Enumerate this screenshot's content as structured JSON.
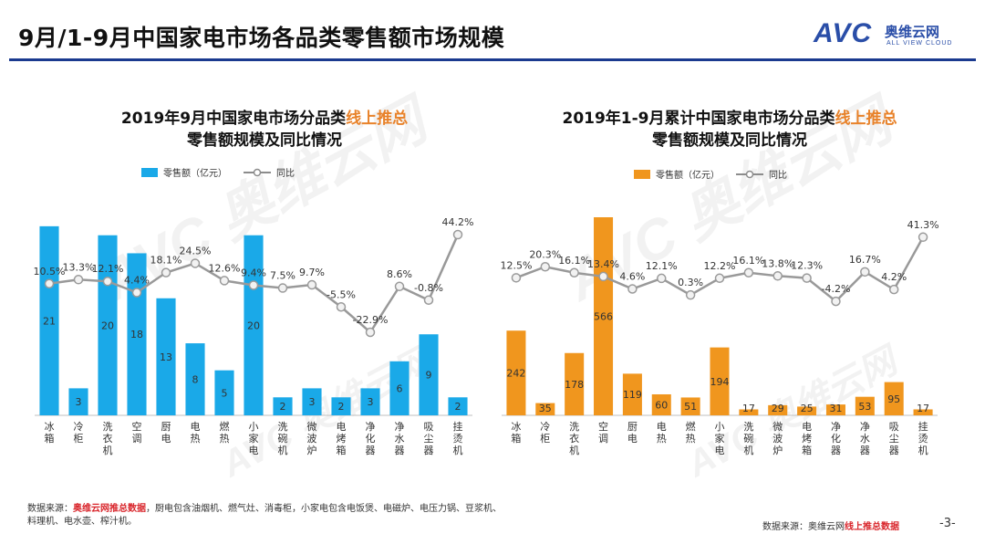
{
  "page": {
    "title": "9月/1-9月中国家电市场各品类零售额市场规模",
    "logo_text": "AVC",
    "logo_cn": "奥维云网",
    "logo_en": "ALL VIEW CLOUD",
    "page_number": "-3-",
    "watermark": "AVC 奥维云网",
    "accent_color": "#1a3a8f"
  },
  "footer": {
    "left_prefix": "数据来源：",
    "left_source": "奥维云网推总数据",
    "left_note": "，厨电包含油烟机、燃气灶、消毒柜，小家电包含电饭煲、电磁炉、电压力锅、豆浆机、料理机、电水壶、榨汁机。",
    "right_prefix": "数据来源：奥维云网",
    "right_source": "线上推总数据"
  },
  "chart_data": [
    {
      "type": "bar",
      "title_line1_prefix": "2019年9月中国家电市场分品类",
      "title_highlight": "线上推总",
      "title_line2": "零售额规模及同比情况",
      "legend_bar": "零售额（亿元）",
      "legend_line": "同比",
      "bar_color": "#1aa9e8",
      "categories": [
        "冰箱",
        "冷柜",
        "洗衣机",
        "空调",
        "厨电",
        "电热",
        "燃热",
        "小家电",
        "洗碗机",
        "微波炉",
        "电烤箱",
        "净化器",
        "净水器",
        "吸尘器",
        "挂烫机"
      ],
      "values": [
        21,
        3,
        20,
        18,
        13,
        8,
        5,
        20,
        2,
        3,
        2,
        3,
        6,
        9,
        2
      ],
      "value_labels": [
        "21",
        "3",
        "20",
        "18",
        "13",
        "8",
        "5",
        "20",
        "2",
        "3",
        "2",
        "3",
        "6",
        "9",
        "2"
      ],
      "yoy": [
        10.5,
        13.3,
        12.1,
        4.4,
        18.1,
        24.5,
        12.6,
        9.4,
        7.5,
        9.7,
        -5.5,
        -22.9,
        8.6,
        -0.8,
        44.2
      ],
      "yoy_labels": [
        "10.5%",
        "13.3%",
        "12.1%",
        "4.4%",
        "18.1%",
        "24.5%",
        "12.6%",
        "9.4%",
        "7.5%",
        "9.7%",
        "-5.5%",
        "-22.9%",
        "8.6%",
        "-0.8%",
        "44.2%"
      ],
      "ylim": [
        0,
        22
      ],
      "yoy_lim": [
        -80,
        80
      ]
    },
    {
      "type": "bar",
      "title_line1_prefix": "2019年1-9月累计中国家电市场分品类",
      "title_highlight": "线上推总",
      "title_line2": "零售额规模及同比情况",
      "legend_bar": "零售额（亿元）",
      "legend_line": "同比",
      "bar_color": "#f0961e",
      "categories": [
        "冰箱",
        "冷柜",
        "洗衣机",
        "空调",
        "厨电",
        "电热",
        "燃热",
        "小家电",
        "洗碗机",
        "微波炉",
        "电烤箱",
        "净化器",
        "净水器",
        "吸尘器",
        "挂烫机"
      ],
      "values": [
        242,
        35,
        178,
        566,
        119,
        60,
        51,
        194,
        17,
        29,
        25,
        31,
        53,
        95,
        17
      ],
      "value_labels": [
        "242",
        "35",
        "178",
        "566",
        "119",
        "60",
        "51",
        "194",
        "17",
        "29",
        "25",
        "31",
        "53",
        "95",
        "17"
      ],
      "yoy": [
        12.5,
        20.3,
        16.1,
        13.4,
        4.6,
        12.1,
        0.3,
        12.2,
        16.1,
        13.8,
        12.3,
        -4.2,
        16.7,
        4.2,
        41.3
      ],
      "yoy_labels": [
        "12.5%",
        "20.3%",
        "16.1%",
        "13.4%",
        "4.6%",
        "12.1%",
        "0.3%",
        "12.2%",
        "16.1%",
        "13.8%",
        "12.3%",
        "-4.2%",
        "16.7%",
        "4.2%",
        "41.3%"
      ],
      "ylim": [
        0,
        566
      ],
      "yoy_lim": [
        -85,
        80
      ]
    }
  ]
}
